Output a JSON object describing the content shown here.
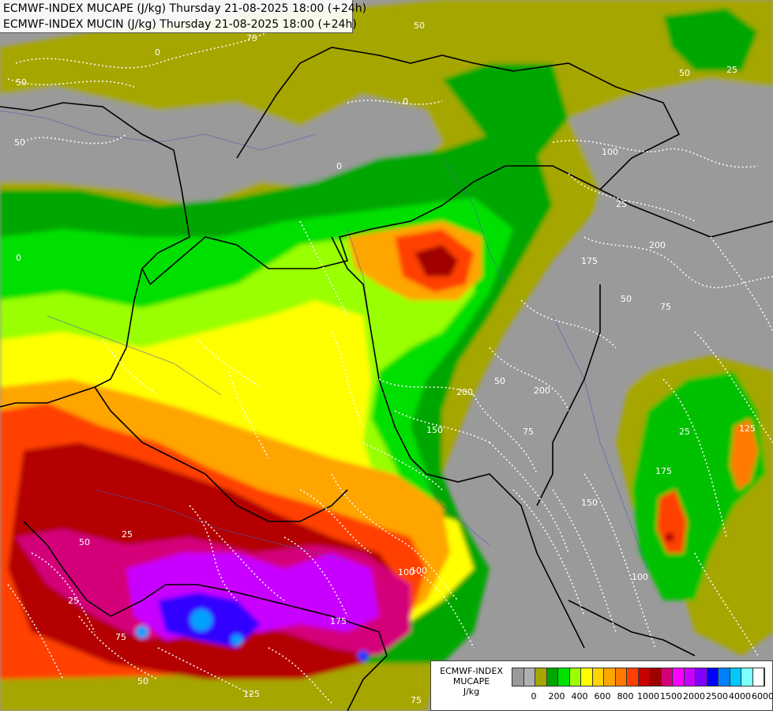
{
  "title": {
    "line1": "ECMWF-INDEX MUCAPE (J/kg) Thursday 21-08-2025 18:00 (+24h)",
    "line2": "ECMWF-INDEX MUCIN (J/kg) Thursday 21-08-2025 18:00 (+24h)"
  },
  "legend": {
    "line1": "ECMWF-INDEX",
    "line2": "MUCAPE",
    "line3": "J/kg",
    "colors": [
      "#9a9a9a",
      "#b0b0b0",
      "#a6a600",
      "#00a600",
      "#00e000",
      "#9aff00",
      "#ffff00",
      "#ffd200",
      "#ffa500",
      "#ff7a00",
      "#ff4000",
      "#c80000",
      "#a00000",
      "#d4007a",
      "#ff00ff",
      "#c800ff",
      "#8000ff",
      "#0000ff",
      "#0080ff",
      "#00c8ff",
      "#80ffff",
      "#ffffff"
    ],
    "ticks": [
      "0",
      "200",
      "400",
      "600",
      "800",
      "1000",
      "1500",
      "2000",
      "2500",
      "4000",
      "6000"
    ]
  },
  "cin_labels": [
    "50",
    "75",
    "0",
    "50",
    "0",
    "50",
    "0",
    "100",
    "25",
    "0",
    "200",
    "175",
    "50",
    "50",
    "75",
    "200",
    "100",
    "150",
    "25",
    "50",
    "75",
    "175",
    "125",
    "50",
    "100",
    "25",
    "125",
    "200",
    "150",
    "175",
    "25",
    "100",
    "75",
    "50",
    "25",
    "75"
  ]
}
